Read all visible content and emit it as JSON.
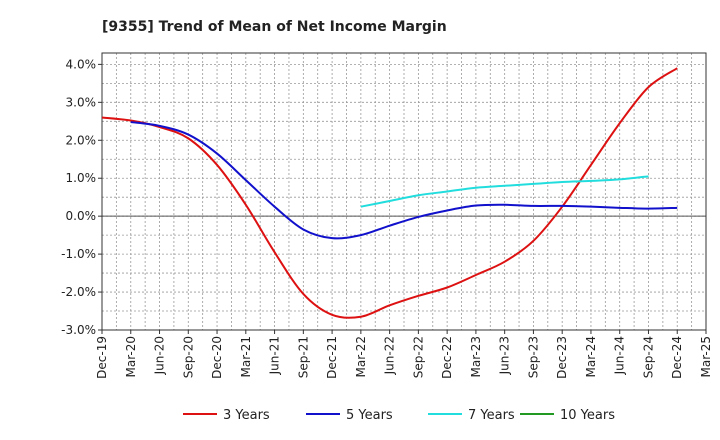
{
  "chart_data": {
    "type": "line",
    "title": "[9355]  Trend of Mean of Net Income Margin",
    "xlabel": "",
    "ylabel": "",
    "x_labels": [
      "Dec-19",
      "Mar-20",
      "Jun-20",
      "Sep-20",
      "Dec-20",
      "Mar-21",
      "Jun-21",
      "Sep-21",
      "Dec-21",
      "Mar-22",
      "Jun-22",
      "Sep-22",
      "Dec-22",
      "Mar-23",
      "Jun-23",
      "Sep-23",
      "Dec-23",
      "Mar-24",
      "Jun-24",
      "Sep-24",
      "Dec-24",
      "Mar-25"
    ],
    "y_ticks": [
      "4.0%",
      "3.0%",
      "2.0%",
      "1.0%",
      "0.0%",
      "-1.0%",
      "-2.0%",
      "-3.0%"
    ],
    "y_tick_values": [
      4,
      3,
      2,
      1,
      0,
      -1,
      -2,
      -3
    ],
    "ylim": [
      -3,
      4.3
    ],
    "grid": true,
    "legend_position": "bottom",
    "series": [
      {
        "name": "3 Years",
        "color": "#dd1111",
        "start_index": 0,
        "values": [
          2.6,
          2.52,
          2.35,
          2.05,
          1.35,
          0.3,
          -0.95,
          -2.05,
          -2.6,
          -2.65,
          -2.35,
          -2.1,
          -1.88,
          -1.55,
          -1.2,
          -0.65,
          0.25,
          1.35,
          2.45,
          3.4,
          3.9
        ]
      },
      {
        "name": "5 Years",
        "color": "#1111cc",
        "start_index": 1,
        "values": [
          2.48,
          2.38,
          2.15,
          1.65,
          0.95,
          0.25,
          -0.35,
          -0.58,
          -0.5,
          -0.25,
          -0.02,
          0.15,
          0.28,
          0.3,
          0.27,
          0.27,
          0.25,
          0.22,
          0.2,
          0.22
        ]
      },
      {
        "name": "7 Years",
        "color": "#22dddd",
        "start_index": 9,
        "values": [
          0.25,
          0.4,
          0.55,
          0.65,
          0.75,
          0.8,
          0.85,
          0.9,
          0.93,
          0.97,
          1.05
        ]
      },
      {
        "name": "10 Years",
        "color": "#229922",
        "start_index": 0,
        "values": []
      }
    ]
  }
}
